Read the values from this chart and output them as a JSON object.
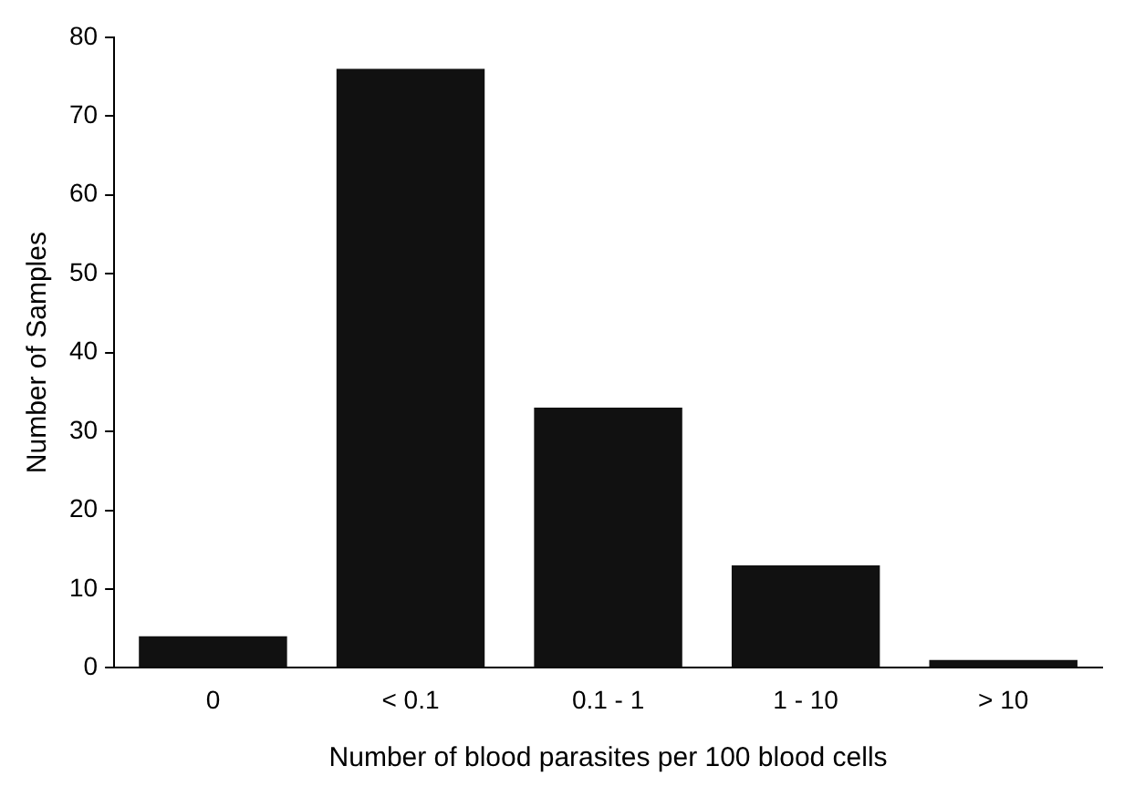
{
  "chart_data": {
    "type": "bar",
    "xlabel": "Number of blood parasites per 100 blood cells",
    "ylabel": "Number of Samples",
    "categories": [
      "0",
      "< 0.1",
      "0.1 - 1",
      "1 - 10",
      "> 10"
    ],
    "values": [
      4,
      76,
      33,
      13,
      1
    ],
    "color": "#111111",
    "ylim": [
      0,
      80
    ],
    "yticks": [
      0,
      10,
      20,
      30,
      40,
      50,
      60,
      70,
      80
    ],
    "grid": false,
    "legend": false
  }
}
